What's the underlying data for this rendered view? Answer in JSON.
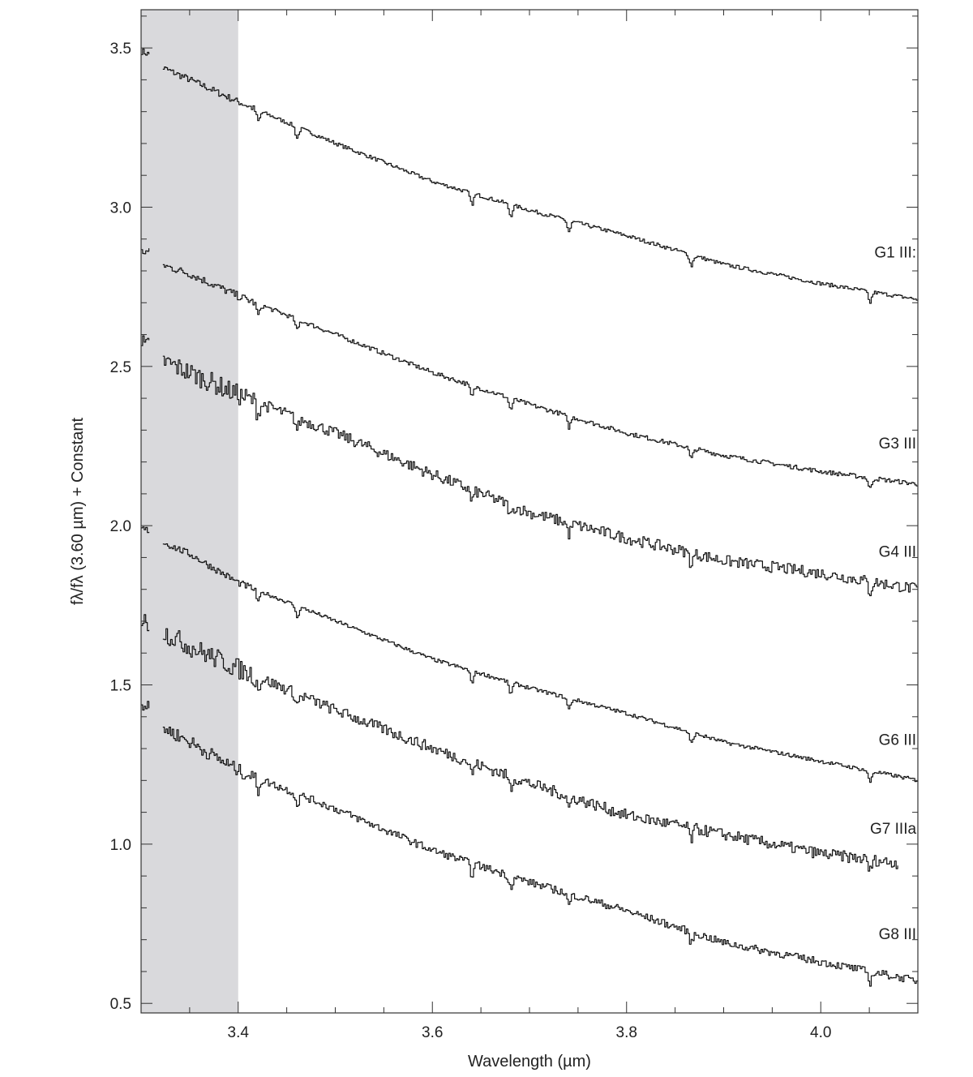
{
  "chart_data": {
    "type": "line",
    "xlabel": "Wavelength (µm)",
    "ylabel": "fλ/fλ (3.60 µm) + Constant",
    "xlim": [
      3.3,
      4.1
    ],
    "ylim": [
      0.47,
      3.62
    ],
    "x_ticks": [
      3.4,
      3.6,
      3.8,
      4.0
    ],
    "x_tick_labels": [
      "3.4",
      "3.6",
      "3.8",
      "4.0"
    ],
    "y_ticks": [
      0.5,
      1.0,
      1.5,
      2.0,
      2.5,
      3.0,
      3.5
    ],
    "y_tick_labels": [
      "0.5",
      "1.0",
      "1.5",
      "2.0",
      "2.5",
      "3.0",
      "3.5"
    ],
    "grid": false,
    "shaded_region": {
      "x": [
        3.3,
        3.4
      ],
      "color": "#d9d9dc"
    },
    "absorption_features": [
      3.42,
      3.46,
      3.64,
      3.68,
      3.74,
      3.866,
      4.05
    ],
    "series": [
      {
        "name": "G1 III:",
        "label_pos": [
          4.075,
          2.86
        ],
        "noise": 0.006,
        "points": [
          [
            3.3,
            3.49
          ],
          [
            3.315,
            3.47
          ],
          [
            3.32,
            3.44
          ],
          [
            3.35,
            3.4
          ],
          [
            3.4,
            3.33
          ],
          [
            3.5,
            3.2
          ],
          [
            3.6,
            3.08
          ],
          [
            3.7,
            2.99
          ],
          [
            3.8,
            2.91
          ],
          [
            3.9,
            2.82
          ],
          [
            4.0,
            2.76
          ],
          [
            4.1,
            2.71
          ]
        ]
      },
      {
        "name": "G3 III",
        "label_pos": [
          4.075,
          2.26
        ],
        "noise": 0.007,
        "points": [
          [
            3.3,
            2.86
          ],
          [
            3.315,
            2.86
          ],
          [
            3.32,
            2.82
          ],
          [
            3.35,
            2.79
          ],
          [
            3.4,
            2.72
          ],
          [
            3.5,
            2.6
          ],
          [
            3.6,
            2.48
          ],
          [
            3.7,
            2.38
          ],
          [
            3.8,
            2.29
          ],
          [
            3.9,
            2.22
          ],
          [
            4.0,
            2.17
          ],
          [
            4.1,
            2.13
          ]
        ]
      },
      {
        "name": "G4 III",
        "label_pos": [
          4.075,
          1.92
        ],
        "noise": 0.018,
        "points": [
          [
            3.3,
            2.57
          ],
          [
            3.315,
            2.55
          ],
          [
            3.32,
            2.52
          ],
          [
            3.35,
            2.48
          ],
          [
            3.4,
            2.41
          ],
          [
            3.5,
            2.29
          ],
          [
            3.6,
            2.16
          ],
          [
            3.7,
            2.04
          ],
          [
            3.8,
            1.96
          ],
          [
            3.9,
            1.89
          ],
          [
            4.0,
            1.85
          ],
          [
            4.1,
            1.8
          ]
        ]
      },
      {
        "name": "G6 III",
        "label_pos": [
          4.075,
          1.33
        ],
        "noise": 0.006,
        "points": [
          [
            3.3,
            1.99
          ],
          [
            3.315,
            1.98
          ],
          [
            3.32,
            1.95
          ],
          [
            3.35,
            1.91
          ],
          [
            3.4,
            1.82
          ],
          [
            3.5,
            1.7
          ],
          [
            3.6,
            1.58
          ],
          [
            3.7,
            1.49
          ],
          [
            3.8,
            1.41
          ],
          [
            3.9,
            1.32
          ],
          [
            4.0,
            1.26
          ],
          [
            4.1,
            1.2
          ]
        ]
      },
      {
        "name": "G7 IIIa",
        "label_pos": [
          4.075,
          1.05
        ],
        "noise": 0.018,
        "points": [
          [
            3.3,
            1.7
          ],
          [
            3.315,
            1.69
          ],
          [
            3.32,
            1.67
          ],
          [
            3.35,
            1.62
          ],
          [
            3.4,
            1.55
          ],
          [
            3.5,
            1.42
          ],
          [
            3.6,
            1.3
          ],
          [
            3.7,
            1.19
          ],
          [
            3.8,
            1.09
          ],
          [
            3.9,
            1.03
          ],
          [
            4.0,
            0.97
          ],
          [
            4.08,
            0.94
          ]
        ]
      },
      {
        "name": "G8 III",
        "label_pos": [
          4.075,
          0.72
        ],
        "noise": 0.012,
        "points": [
          [
            3.3,
            1.44
          ],
          [
            3.315,
            1.41
          ],
          [
            3.32,
            1.37
          ],
          [
            3.35,
            1.32
          ],
          [
            3.4,
            1.23
          ],
          [
            3.5,
            1.11
          ],
          [
            3.6,
            0.98
          ],
          [
            3.7,
            0.88
          ],
          [
            3.8,
            0.79
          ],
          [
            3.9,
            0.69
          ],
          [
            4.0,
            0.63
          ],
          [
            4.1,
            0.57
          ]
        ]
      }
    ]
  }
}
